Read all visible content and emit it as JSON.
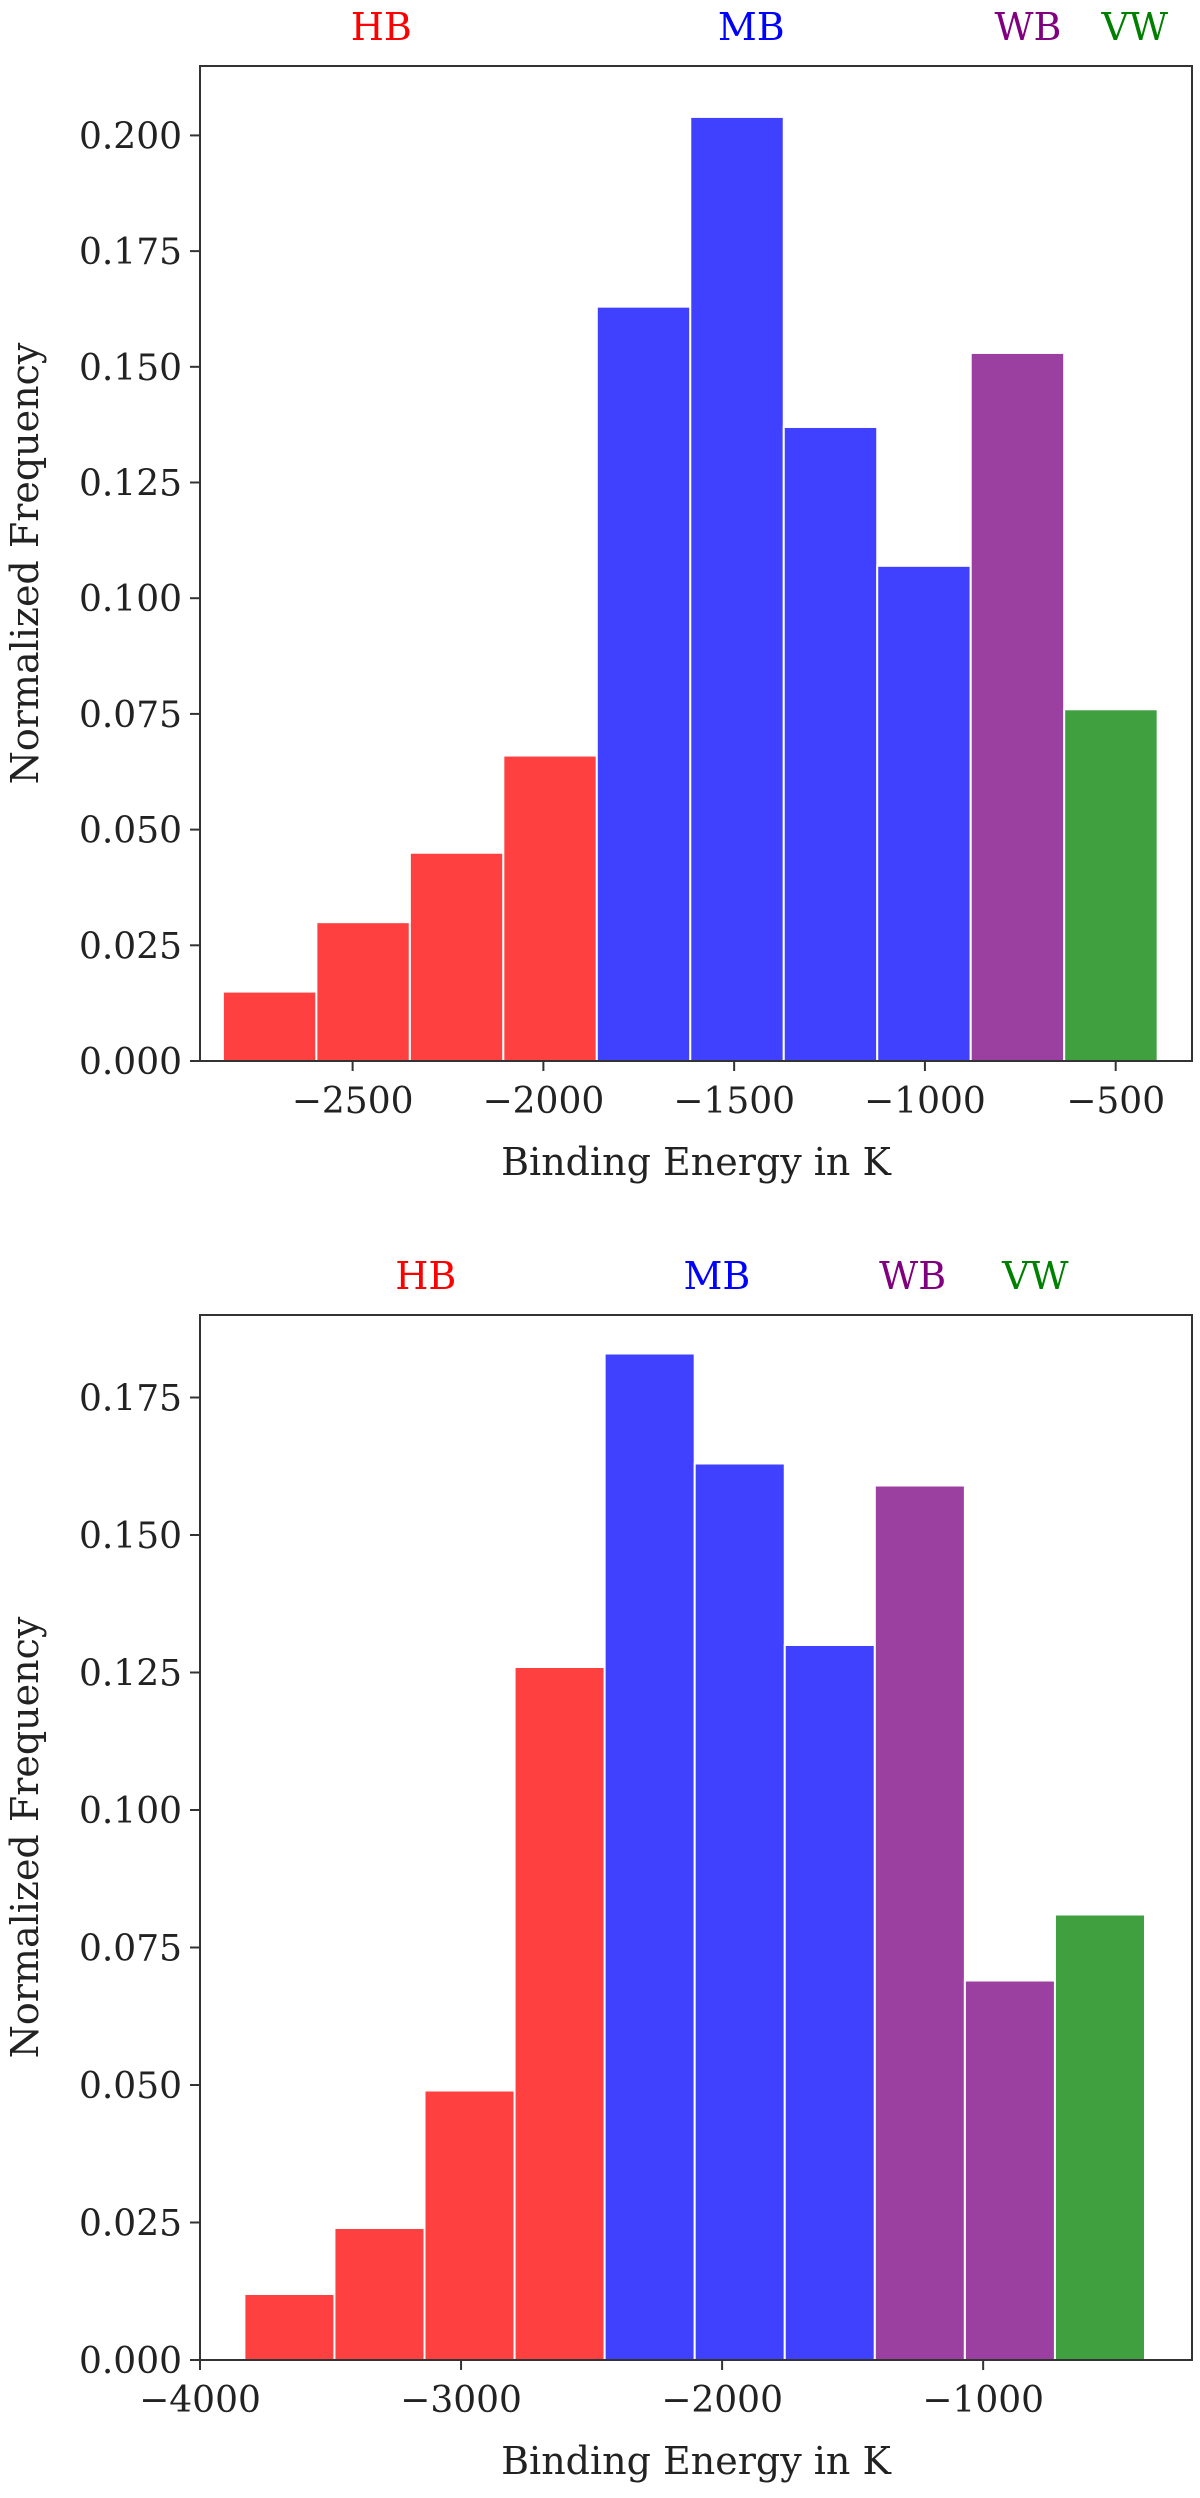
{
  "chart_data": [
    {
      "type": "bar",
      "xlabel": "Binding Energy in K",
      "ylabel": "Normalized Frequency",
      "xlim": [
        -2900,
        -300
      ],
      "ylim": [
        0,
        0.215
      ],
      "xticks": [
        -2500,
        -2000,
        -1500,
        -1000,
        -500
      ],
      "xtick_labels": [
        "−2500",
        "−2000",
        "−1500",
        "−1000",
        "−500"
      ],
      "yticks": [
        0,
        0.025,
        0.05,
        0.075,
        0.1,
        0.125,
        0.15,
        0.175,
        0.2
      ],
      "ytick_labels": [
        "0.000",
        "0.025",
        "0.050",
        "0.075",
        "0.100",
        "0.125",
        "0.150",
        "0.175",
        "0.200"
      ],
      "bins": [
        {
          "x0": -2840,
          "x1": -2595,
          "value": 0.015,
          "class": "HB"
        },
        {
          "x0": -2595,
          "x1": -2350,
          "value": 0.03,
          "class": "HB"
        },
        {
          "x0": -2350,
          "x1": -2105,
          "value": 0.045,
          "class": "HB"
        },
        {
          "x0": -2105,
          "x1": -1860,
          "value": 0.066,
          "class": "HB"
        },
        {
          "x0": -1860,
          "x1": -1615,
          "value": 0.163,
          "class": "MB"
        },
        {
          "x0": -1615,
          "x1": -1370,
          "value": 0.204,
          "class": "MB"
        },
        {
          "x0": -1370,
          "x1": -1125,
          "value": 0.137,
          "class": "MB"
        },
        {
          "x0": -1125,
          "x1": -880,
          "value": 0.107,
          "class": "MB"
        },
        {
          "x0": -880,
          "x1": -635,
          "value": 0.153,
          "class": "WB"
        },
        {
          "x0": -635,
          "x1": -390,
          "value": 0.076,
          "class": "VW"
        }
      ],
      "categories": [
        {
          "label": "HB",
          "color": "#ff0000",
          "position": -2425
        },
        {
          "label": "MB",
          "color": "#0000ff",
          "position": -1455
        },
        {
          "label": "WB",
          "color": "#800080",
          "position": -730
        },
        {
          "label": "VW",
          "color": "#008000",
          "position": -450
        }
      ]
    },
    {
      "type": "bar",
      "xlabel": "Binding Energy in K",
      "ylabel": "Normalized Frequency",
      "xlim": [
        -4000,
        -200
      ],
      "ylim": [
        0,
        0.19
      ],
      "xticks": [
        -4000,
        -3000,
        -2000,
        -1000
      ],
      "xtick_labels": [
        "−4000",
        "−3000",
        "−2000",
        "−1000"
      ],
      "yticks": [
        0,
        0.025,
        0.05,
        0.075,
        0.1,
        0.125,
        0.15,
        0.175
      ],
      "ytick_labels": [
        "0.000",
        "0.025",
        "0.050",
        "0.075",
        "0.100",
        "0.125",
        "0.150",
        "0.175"
      ],
      "bins": [
        {
          "x0": -3830,
          "x1": -3485,
          "value": 0.012,
          "class": "HB"
        },
        {
          "x0": -3485,
          "x1": -3140,
          "value": 0.024,
          "class": "HB"
        },
        {
          "x0": -3140,
          "x1": -2795,
          "value": 0.049,
          "class": "HB"
        },
        {
          "x0": -2795,
          "x1": -2450,
          "value": 0.126,
          "class": "HB"
        },
        {
          "x0": -2450,
          "x1": -2105,
          "value": 0.183,
          "class": "MB"
        },
        {
          "x0": -2105,
          "x1": -1760,
          "value": 0.163,
          "class": "MB"
        },
        {
          "x0": -1760,
          "x1": -1415,
          "value": 0.13,
          "class": "MB"
        },
        {
          "x0": -1415,
          "x1": -1070,
          "value": 0.159,
          "class": "WB"
        },
        {
          "x0": -1070,
          "x1": -725,
          "value": 0.069,
          "class": "WB"
        },
        {
          "x0": -725,
          "x1": -380,
          "value": 0.081,
          "class": "VW"
        }
      ],
      "categories": [
        {
          "label": "HB",
          "color": "#ff0000",
          "position": -3135
        },
        {
          "label": "MB",
          "color": "#0000ff",
          "position": -2020
        },
        {
          "label": "WB",
          "color": "#800080",
          "position": -1270
        },
        {
          "label": "VW",
          "color": "#008000",
          "position": -800
        }
      ]
    }
  ]
}
